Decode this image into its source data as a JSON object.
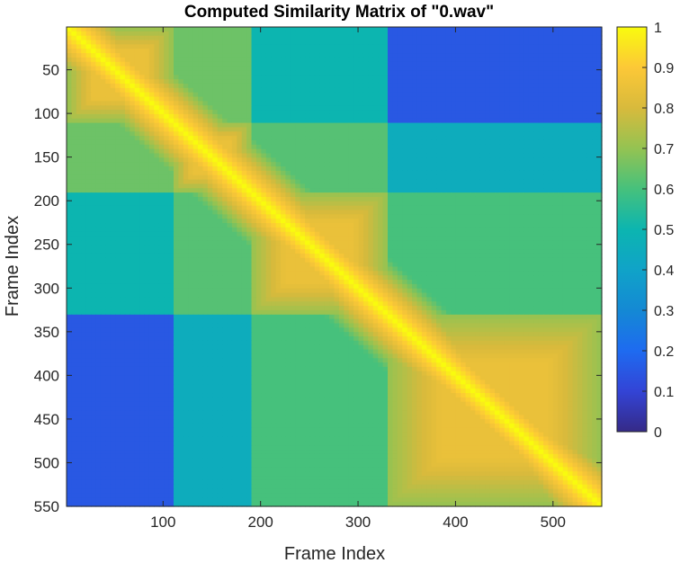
{
  "chart_data": {
    "type": "heatmap",
    "title": "Computed Similarity Matrix of \"0.wav\"",
    "xlabel": "Frame Index",
    "ylabel": "Frame Index",
    "x_ticks": [
      100,
      200,
      300,
      400,
      500
    ],
    "y_ticks": [
      50,
      100,
      150,
      200,
      250,
      300,
      350,
      400,
      450,
      500,
      550
    ],
    "xlim": [
      1,
      550
    ],
    "ylim": [
      1,
      550
    ],
    "colormap": "parula",
    "colorbar": {
      "range": [
        0,
        1
      ],
      "ticks": [
        0,
        0.1,
        0.2,
        0.3,
        0.4,
        0.5,
        0.6,
        0.7,
        0.8,
        0.9,
        1
      ],
      "tick_labels": [
        "0",
        "0.1",
        "0.2",
        "0.3",
        "0.4",
        "0.5",
        "0.6",
        "0.7",
        "0.8",
        "0.9",
        "1"
      ]
    },
    "segment_boundaries": [
      1,
      110,
      190,
      330,
      550
    ],
    "block_similarity": [
      [
        1.0,
        0.65,
        0.5,
        0.15
      ],
      [
        0.65,
        1.0,
        0.62,
        0.45
      ],
      [
        0.5,
        0.62,
        1.0,
        0.6
      ],
      [
        0.15,
        0.45,
        0.6,
        1.0
      ]
    ],
    "within_segment_peak": 0.85,
    "diagonal_value": 1.0
  }
}
